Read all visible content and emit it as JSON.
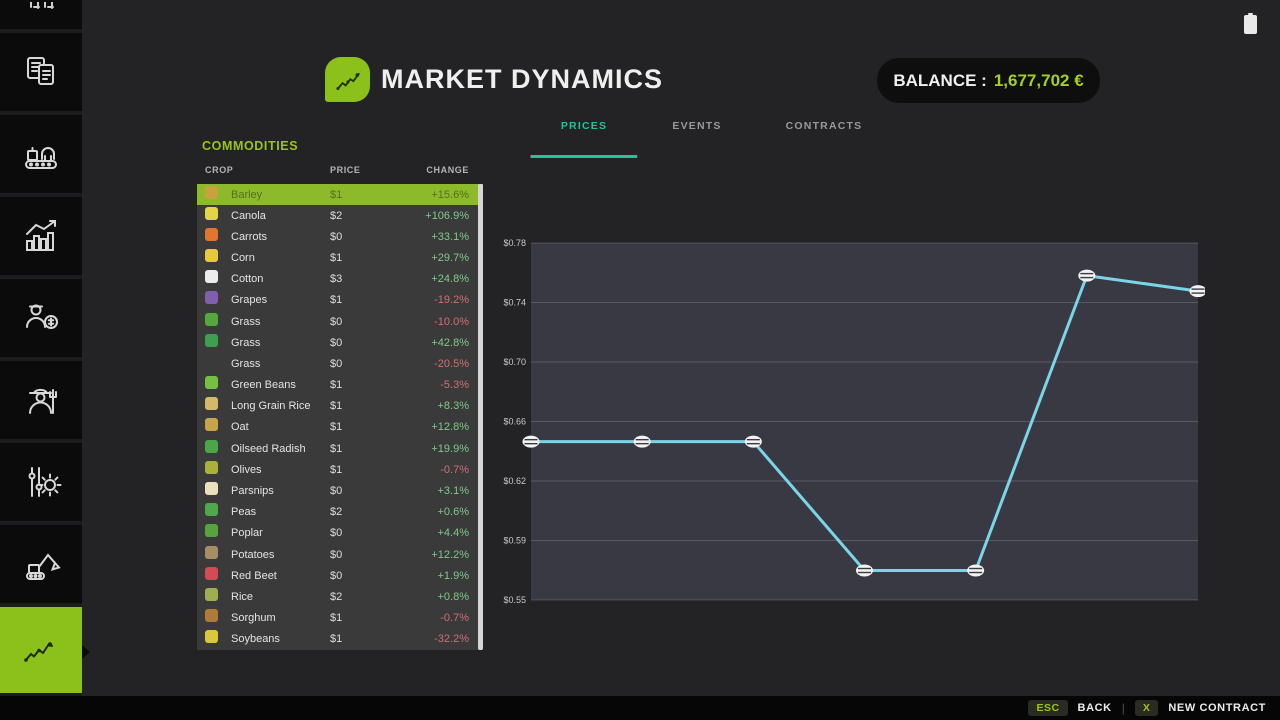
{
  "statusbar": {
    "battery_icon": "battery-icon"
  },
  "sidebar": {
    "items": [
      {
        "icon": "clipped-top-icon",
        "active": false
      },
      {
        "icon": "documents-icon",
        "active": false
      },
      {
        "icon": "production-icon",
        "active": false
      },
      {
        "icon": "statistics-icon",
        "active": false
      },
      {
        "icon": "finances-icon",
        "active": false
      },
      {
        "icon": "farmer-icon",
        "active": false
      },
      {
        "icon": "settings-icon",
        "active": false
      },
      {
        "icon": "excavator-icon",
        "active": false
      },
      {
        "icon": "market-dynamics-icon",
        "active": true
      }
    ]
  },
  "header": {
    "title": "MARKET DYNAMICS",
    "balance_label": "BALANCE :",
    "balance_value": "1,677,702 €"
  },
  "tabs": [
    {
      "label": "PRICES",
      "active": true
    },
    {
      "label": "EVENTS",
      "active": false
    },
    {
      "label": "CONTRACTS",
      "active": false
    }
  ],
  "commodities": {
    "title": "COMMODITIES",
    "columns": [
      "CROP",
      "PRICE",
      "CHANGE"
    ],
    "rows": [
      {
        "icon": "barley-icon",
        "icon_color": "#c9a23e",
        "name": "Barley",
        "price": "$1",
        "change": "+15.6%",
        "dir": "up",
        "selected": true
      },
      {
        "icon": "canola-icon",
        "icon_color": "#e3d54a",
        "name": "Canola",
        "price": "$2",
        "change": "+106.9%",
        "dir": "up",
        "selected": false
      },
      {
        "icon": "carrots-icon",
        "icon_color": "#e0762f",
        "name": "Carrots",
        "price": "$0",
        "change": "+33.1%",
        "dir": "up",
        "selected": false
      },
      {
        "icon": "corn-icon",
        "icon_color": "#e8c83f",
        "name": "Corn",
        "price": "$1",
        "change": "+29.7%",
        "dir": "up",
        "selected": false
      },
      {
        "icon": "cotton-icon",
        "icon_color": "#ececec",
        "name": "Cotton",
        "price": "$3",
        "change": "+24.8%",
        "dir": "up",
        "selected": false
      },
      {
        "icon": "grapes-icon",
        "icon_color": "#7f5fae",
        "name": "Grapes",
        "price": "$1",
        "change": "-19.2%",
        "dir": "down",
        "selected": false
      },
      {
        "icon": "grass-icon",
        "icon_color": "#55a93c",
        "name": "Grass",
        "price": "$0",
        "change": "-10.0%",
        "dir": "down",
        "selected": false
      },
      {
        "icon": "grass-icon",
        "icon_color": "#3f9e52",
        "name": "Grass",
        "price": "$0",
        "change": "+42.8%",
        "dir": "up",
        "selected": false
      },
      {
        "icon": null,
        "icon_color": null,
        "name": "Grass",
        "price": "$0",
        "change": "-20.5%",
        "dir": "down",
        "selected": false
      },
      {
        "icon": "green-beans-icon",
        "icon_color": "#74c043",
        "name": "Green Beans",
        "price": "$1",
        "change": "-5.3%",
        "dir": "down",
        "selected": false
      },
      {
        "icon": "long-grain-rice-icon",
        "icon_color": "#d3b968",
        "name": "Long Grain Rice",
        "price": "$1",
        "change": "+8.3%",
        "dir": "up",
        "selected": false
      },
      {
        "icon": "oat-icon",
        "icon_color": "#c7a44c",
        "name": "Oat",
        "price": "$1",
        "change": "+12.8%",
        "dir": "up",
        "selected": false
      },
      {
        "icon": "oilseed-radish-icon",
        "icon_color": "#4ba647",
        "name": "Oilseed Radish",
        "price": "$1",
        "change": "+19.9%",
        "dir": "up",
        "selected": false
      },
      {
        "icon": "olives-icon",
        "icon_color": "#aab03c",
        "name": "Olives",
        "price": "$1",
        "change": "-0.7%",
        "dir": "down",
        "selected": false
      },
      {
        "icon": "parsnips-icon",
        "icon_color": "#eadfbe",
        "name": "Parsnips",
        "price": "$0",
        "change": "+3.1%",
        "dir": "up",
        "selected": false
      },
      {
        "icon": "peas-icon",
        "icon_color": "#4fa84b",
        "name": "Peas",
        "price": "$2",
        "change": "+0.6%",
        "dir": "up",
        "selected": false
      },
      {
        "icon": "poplar-icon",
        "icon_color": "#57a33c",
        "name": "Poplar",
        "price": "$0",
        "change": "+4.4%",
        "dir": "up",
        "selected": false
      },
      {
        "icon": "potatoes-icon",
        "icon_color": "#a58d66",
        "name": "Potatoes",
        "price": "$0",
        "change": "+12.2%",
        "dir": "up",
        "selected": false
      },
      {
        "icon": "red-beet-icon",
        "icon_color": "#d24b55",
        "name": "Red Beet",
        "price": "$0",
        "change": "+1.9%",
        "dir": "up",
        "selected": false
      },
      {
        "icon": "rice-icon",
        "icon_color": "#9fae4e",
        "name": "Rice",
        "price": "$2",
        "change": "+0.8%",
        "dir": "up",
        "selected": false
      },
      {
        "icon": "sorghum-icon",
        "icon_color": "#b07b36",
        "name": "Sorghum",
        "price": "$1",
        "change": "-0.7%",
        "dir": "down",
        "selected": false
      },
      {
        "icon": "soybeans-icon",
        "icon_color": "#d8c83e",
        "name": "Soybeans",
        "price": "$1",
        "change": "-32.2%",
        "dir": "down",
        "selected": false
      }
    ]
  },
  "chart_data": {
    "type": "line",
    "title": "",
    "xlabel": "",
    "ylabel": "",
    "x": [
      1,
      2,
      3,
      4,
      5,
      6,
      7
    ],
    "values": [
      0.652,
      0.652,
      0.652,
      0.569,
      0.569,
      0.759,
      0.749
    ],
    "ytick_labels": [
      "$0.78",
      "$0.74",
      "$0.70",
      "$0.66",
      "$0.62",
      "$0.59",
      "$0.55"
    ],
    "ylim": [
      0.55,
      0.78
    ],
    "grid": true,
    "legend": false,
    "line_color": "#7ad5e6",
    "marker": "white-coin",
    "plot_bg": "#393944"
  },
  "footer": {
    "esc_key": "ESC",
    "back_label": "BACK",
    "separator": "|",
    "x_key": "X",
    "new_contract_label": "NEW CONTRACT"
  },
  "colors": {
    "accent_lime": "#9ac41c",
    "accent_teal": "#1ec795",
    "positive": "#7fca88",
    "negative": "#cf7070",
    "selected_row": "#8cba2b"
  }
}
